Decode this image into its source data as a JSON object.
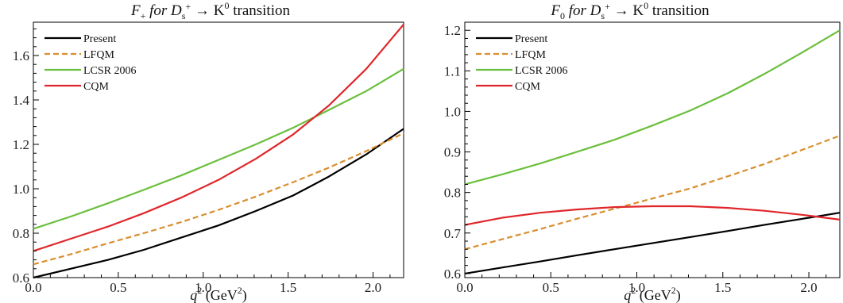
{
  "chart_data": [
    {
      "type": "line",
      "title": {
        "pre": "F",
        "sub1": "+",
        "mid": " for D",
        "sub2": "s",
        "sup2": "+",
        "post": " → K",
        "sup3": "0",
        "tail": " transition"
      },
      "xlabel": {
        "main": "q",
        "sup": "2",
        "rest": " (GeV",
        "sup2": "2",
        "close": ")"
      },
      "ylabel": "",
      "xlim": [
        0,
        2.18
      ],
      "ylim": [
        0.6,
        1.75
      ],
      "xticks": [
        0.0,
        0.5,
        1.0,
        1.5,
        2.0
      ],
      "xtick_labels": [
        "0.0",
        "0.5",
        "1.0",
        "1.5",
        "2.0"
      ],
      "yticks": [
        0.6,
        0.8,
        1.0,
        1.2,
        1.4,
        1.6
      ],
      "ytick_labels": [
        "0.6",
        "0.8",
        "1.0",
        "1.2",
        "1.4",
        "1.6"
      ],
      "grid": false,
      "legend_position": "top-left",
      "x": [
        0.0,
        0.22,
        0.44,
        0.65,
        0.87,
        1.09,
        1.31,
        1.53,
        1.74,
        1.96,
        2.18
      ],
      "series": [
        {
          "name": "Present",
          "color": "#000000",
          "dash": "solid",
          "values": [
            0.6,
            0.64,
            0.68,
            0.725,
            0.78,
            0.835,
            0.9,
            0.97,
            1.055,
            1.155,
            1.27
          ]
        },
        {
          "name": "LFQM",
          "color": "#d98e2f",
          "dash": "dashed",
          "values": [
            0.66,
            0.705,
            0.755,
            0.8,
            0.85,
            0.905,
            0.965,
            1.03,
            1.095,
            1.17,
            1.25
          ]
        },
        {
          "name": "LCSR 2006",
          "color": "#6abf3c",
          "dash": "solid",
          "values": [
            0.82,
            0.875,
            0.935,
            0.995,
            1.06,
            1.13,
            1.2,
            1.275,
            1.355,
            1.44,
            1.54
          ]
        },
        {
          "name": "CQM",
          "color": "#e0262a",
          "dash": "solid",
          "values": [
            0.72,
            0.775,
            0.83,
            0.89,
            0.96,
            1.04,
            1.135,
            1.245,
            1.375,
            1.54,
            1.74
          ]
        }
      ]
    },
    {
      "type": "line",
      "title": {
        "pre": "F",
        "sub1": "0",
        "mid": " for D",
        "sub2": "s",
        "sup2": "+",
        "post": " → K",
        "sup3": "0",
        "tail": " transition"
      },
      "xlabel": {
        "main": "q",
        "sup": "2",
        "rest": " (GeV",
        "sup2": "2",
        "close": ")"
      },
      "ylabel": "",
      "xlim": [
        0,
        2.18
      ],
      "ylim": [
        0.59,
        1.22
      ],
      "xticks": [
        0.0,
        0.5,
        1.0,
        1.5,
        2.0
      ],
      "xtick_labels": [
        "0.0",
        "0.5",
        "1.0",
        "1.5",
        "2.0"
      ],
      "yticks": [
        0.6,
        0.7,
        0.8,
        0.9,
        1.0,
        1.1,
        1.2
      ],
      "ytick_labels": [
        "0.6",
        "0.7",
        "0.8",
        "0.9",
        "1.0",
        "1.1",
        "1.2"
      ],
      "grid": false,
      "legend_position": "top-left",
      "x": [
        0.0,
        0.22,
        0.44,
        0.65,
        0.87,
        1.09,
        1.31,
        1.53,
        1.74,
        1.96,
        2.18
      ],
      "series": [
        {
          "name": "Present",
          "color": "#000000",
          "dash": "solid",
          "values": [
            0.6,
            0.615,
            0.63,
            0.645,
            0.66,
            0.675,
            0.69,
            0.705,
            0.72,
            0.735,
            0.75
          ]
        },
        {
          "name": "LFQM",
          "color": "#d98e2f",
          "dash": "dashed",
          "values": [
            0.66,
            0.685,
            0.71,
            0.735,
            0.76,
            0.785,
            0.81,
            0.84,
            0.87,
            0.905,
            0.94
          ]
        },
        {
          "name": "LCSR 2006",
          "color": "#6abf3c",
          "dash": "solid",
          "values": [
            0.82,
            0.845,
            0.872,
            0.9,
            0.93,
            0.965,
            1.002,
            1.045,
            1.092,
            1.145,
            1.2
          ]
        },
        {
          "name": "CQM",
          "color": "#e0262a",
          "dash": "solid",
          "values": [
            0.72,
            0.738,
            0.75,
            0.758,
            0.764,
            0.766,
            0.766,
            0.762,
            0.755,
            0.745,
            0.733
          ]
        }
      ]
    }
  ]
}
